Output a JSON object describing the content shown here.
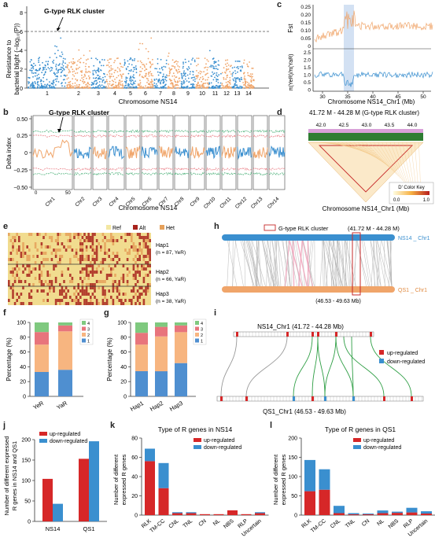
{
  "panels": {
    "a": {
      "label": "a",
      "ylabel_1": "Resistance to",
      "ylabel_2": "bacterial blight (−log₁₀(P))",
      "xlabel": "Chromosome NS14",
      "annotation": "G-type RLK cluster",
      "chromosomes": [
        "1",
        "2",
        "3",
        "4",
        "5",
        "6",
        "7",
        "8",
        "9",
        "10",
        "11",
        "12",
        "13",
        "14"
      ],
      "yticks": [
        "0",
        "2",
        "4",
        "6",
        "8"
      ],
      "colors": {
        "odd": "#3a8fcf",
        "even": "#f0a56a",
        "threshold": "#555555"
      }
    },
    "b": {
      "label": "b",
      "ylabel": "Delta index",
      "xlabel": "Chromosome NS14",
      "annotation": "G-type RLK cluster",
      "yticks": [
        "0.50",
        "0.25",
        "0",
        "−0.25",
        "−0.50"
      ],
      "chr1_ticks": [
        "0",
        "50"
      ],
      "chr_labels": [
        "Chr1",
        "Chr2",
        "Chr3",
        "Chr4",
        "Chr5",
        "Chr6",
        "Chr7",
        "Chr8",
        "Chr9",
        "Chr10",
        "Chr11",
        "Chr12",
        "Chr13",
        "Chr14"
      ]
    },
    "c": {
      "label": "c",
      "top_ylabel": "Fst",
      "bottom_ylabel": "π(YeR)/π(YaR)",
      "top_yticks": [
        "0.25",
        "0.20",
        "0.15",
        "0.10",
        "0.05",
        "0"
      ],
      "bottom_yticks": [
        "2.5",
        "2.0",
        "1.5",
        "1.0",
        "0.5",
        "0"
      ],
      "xticks": [
        "30",
        "35",
        "40",
        "45",
        "50"
      ],
      "xlabel": "Chromosome NS14_Chr1 (Mb)"
    },
    "d": {
      "label": "d",
      "title": "41.72 M - 44.28 M (G-type RLK cluster)",
      "ticks": [
        "42.0",
        "42.5",
        "43.0",
        "43.5",
        "44.0"
      ],
      "legend_title": "D' Color Key",
      "legend_min": "0.0",
      "legend_max": "1.0",
      "xlabel": "Chromosome NS14_Chr1 (Mb)"
    },
    "e": {
      "label": "e",
      "legend": [
        "Ref",
        "Alt",
        "Het"
      ],
      "legend_colors": [
        "#f3e7a2",
        "#a8231d",
        "#e5a05a"
      ],
      "haps": [
        {
          "name": "Hap1",
          "detail": "(n = 87, YeR)"
        },
        {
          "name": "Hap2",
          "detail": "(n = 66, YaR)"
        },
        {
          "name": "Hap3",
          "detail": "(n = 38, YaR)"
        }
      ]
    },
    "f": {
      "label": "f",
      "ylabel": "Percentage (%)",
      "yticks": [
        "0",
        "20",
        "40",
        "60",
        "80",
        "100"
      ],
      "legend": [
        "4",
        "3",
        "2",
        "1"
      ]
    },
    "g": {
      "label": "g",
      "ylabel": "Percentage (%)",
      "yticks": [
        "0",
        "20",
        "40",
        "60",
        "80",
        "100"
      ],
      "legend": [
        "4",
        "3",
        "2",
        "1"
      ]
    },
    "h": {
      "label": "h",
      "legend": "G-type RLK cluster",
      "region_top": "(41.72 M - 44.28 M)",
      "ns14": "NS14 _ Chr1",
      "qs1": "QS1 _ Chr1",
      "region_bottom": "(46.53 - 49.63 Mb)"
    },
    "i": {
      "label": "i",
      "top": "NS14_Chr1 (41.72 - 44.28 Mb)",
      "bottom": "QS1_Chr1 (46.53 - 49.63 Mb)",
      "legend": [
        "up-regulated",
        "down-regulated"
      ]
    },
    "j": {
      "label": "j",
      "ylabel_1": "Number of different expressed",
      "ylabel_2": "R genes in NS14 and QS1",
      "legend": [
        "up-regulated",
        "down-regulated"
      ],
      "yticks": [
        "0",
        "50",
        "100",
        "150",
        "200"
      ]
    },
    "k": {
      "label": "k",
      "title": "Type of R genes in NS14",
      "ylabel_1": "Number of different",
      "ylabel_2": "expressed R genes",
      "legend": [
        "up-regulated",
        "down-regulated"
      ],
      "yticks": [
        "0",
        "20",
        "40",
        "60",
        "80"
      ]
    },
    "l": {
      "label": "l",
      "title": "Type of R genes in QS1",
      "ylabel_1": "Number of different",
      "ylabel_2": "expressed R genes",
      "legend": [
        "up-regulated",
        "down-regulated"
      ],
      "yticks": [
        "0",
        "50",
        "100",
        "150",
        "200"
      ]
    }
  },
  "colors": {
    "up": "#d62728",
    "down": "#3a8fcf",
    "c4": "#7fc97f",
    "c3": "#e8747c",
    "c2": "#f7b580",
    "c1": "#4f8fd0",
    "orange": "#f0a56a",
    "blue": "#3a8fcf"
  },
  "chart_data": [
    {
      "type": "bar",
      "panel": "f",
      "categories": [
        "YeR",
        "YaR"
      ],
      "series": [
        {
          "name": "1",
          "values": [
            33,
            36
          ]
        },
        {
          "name": "2",
          "values": [
            37,
            52
          ]
        },
        {
          "name": "3",
          "values": [
            17,
            8
          ]
        },
        {
          "name": "4",
          "values": [
            13,
            4
          ]
        }
      ],
      "ylim": [
        0,
        100
      ]
    },
    {
      "type": "bar",
      "panel": "g",
      "categories": [
        "Hap1",
        "Hap2",
        "Hap3"
      ],
      "series": [
        {
          "name": "1",
          "values": [
            34,
            34,
            45
          ]
        },
        {
          "name": "2",
          "values": [
            36,
            47,
            42
          ]
        },
        {
          "name": "3",
          "values": [
            16,
            13,
            9
          ]
        },
        {
          "name": "4",
          "values": [
            14,
            6,
            4
          ]
        }
      ],
      "ylim": [
        0,
        100
      ]
    },
    {
      "type": "bar",
      "panel": "j",
      "categories": [
        "NS14",
        "QS1"
      ],
      "series": [
        {
          "name": "up-regulated",
          "values": [
            104,
            153
          ]
        },
        {
          "name": "down-regulated",
          "values": [
            43,
            196
          ]
        }
      ],
      "ylim": [
        0,
        200
      ]
    },
    {
      "type": "bar",
      "panel": "k",
      "categories": [
        "RLK",
        "TM-CC",
        "CNL",
        "TNL",
        "CN",
        "NL",
        "NBS",
        "RLP",
        "Uncertain"
      ],
      "series": [
        {
          "name": "up-regulated",
          "values": [
            56,
            28,
            2,
            2,
            1,
            1,
            5,
            1,
            2
          ]
        },
        {
          "name": "down-regulated",
          "values": [
            13,
            26,
            1,
            1,
            0,
            0,
            0,
            0,
            1
          ]
        }
      ],
      "ylim": [
        0,
        80
      ]
    },
    {
      "type": "bar",
      "panel": "l",
      "categories": [
        "RLK",
        "TM-CC",
        "CNL",
        "TNL",
        "CN",
        "NL",
        "NBS",
        "RLP",
        "Uncertain"
      ],
      "series": [
        {
          "name": "up-regulated",
          "values": [
            62,
            66,
            5,
            2,
            2,
            5,
            6,
            7,
            4
          ]
        },
        {
          "name": "down-regulated",
          "values": [
            81,
            53,
            19,
            3,
            2,
            7,
            3,
            12,
            6
          ]
        }
      ],
      "ylim": [
        0,
        200
      ]
    }
  ]
}
